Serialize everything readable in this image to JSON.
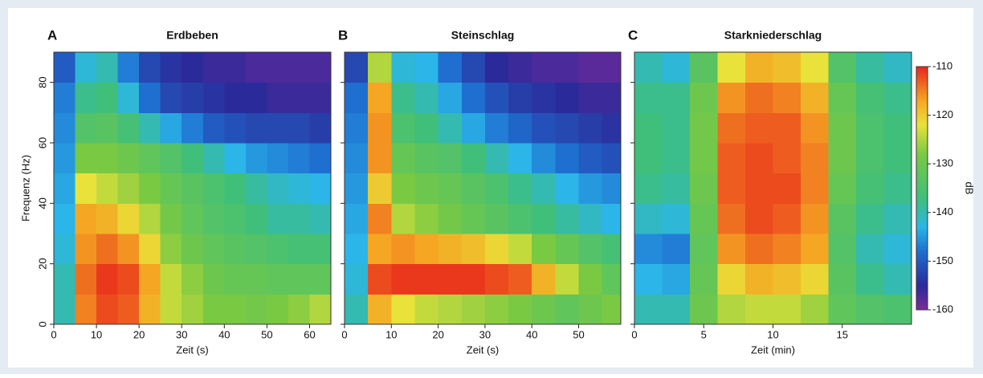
{
  "chart_data": [
    {
      "type": "heatmap",
      "letter": "A",
      "title": "Erdbeben",
      "xlabel": "Zeit (s)",
      "ylabel": "Frequenz (Hz)",
      "xlim": [
        0,
        65
      ],
      "xticks": [
        0,
        10,
        20,
        30,
        40,
        50,
        60
      ],
      "ylim": [
        0,
        90
      ],
      "yticks": [
        0,
        20,
        40,
        60,
        80
      ],
      "xbins": [
        0,
        5,
        10,
        15,
        20,
        25,
        30,
        35,
        40,
        45,
        50,
        55,
        60,
        65
      ],
      "ybins": [
        0,
        10,
        20,
        30,
        40,
        50,
        60,
        70,
        80,
        90
      ],
      "z": [
        [
          -140,
          -115,
          -112,
          -113,
          -118,
          -124,
          -126,
          -128,
          -128,
          -129,
          -128,
          -127,
          -125
        ],
        [
          -140,
          -114,
          -111,
          -112,
          -117,
          -124,
          -127,
          -130,
          -131,
          -131,
          -132,
          -132,
          -132
        ],
        [
          -142,
          -116,
          -114,
          -116,
          -121,
          -127,
          -130,
          -132,
          -133,
          -134,
          -135,
          -136,
          -136
        ],
        [
          -143,
          -117,
          -118,
          -121,
          -125,
          -129,
          -132,
          -134,
          -135,
          -137,
          -139,
          -139,
          -140
        ],
        [
          -144,
          -122,
          -124,
          -126,
          -128,
          -131,
          -133,
          -135,
          -137,
          -139,
          -141,
          -142,
          -143
        ],
        [
          -145,
          -128,
          -128,
          -130,
          -132,
          -134,
          -137,
          -140,
          -143,
          -145,
          -146,
          -147,
          -148
        ],
        [
          -146,
          -134,
          -133,
          -136,
          -140,
          -144,
          -147,
          -150,
          -151,
          -152,
          -152,
          -152,
          -153
        ],
        [
          -147,
          -138,
          -137,
          -142,
          -148,
          -152,
          -153,
          -154,
          -155,
          -155,
          -156,
          -156,
          -156
        ],
        [
          -150,
          -142,
          -140,
          -147,
          -152,
          -154,
          -155,
          -156,
          -156,
          -157,
          -157,
          -157,
          -157
        ]
      ]
    },
    {
      "type": "heatmap",
      "letter": "B",
      "title": "Steinschlag",
      "xlabel": "Zeit (s)",
      "xlim": [
        0,
        59
      ],
      "xticks": [
        0,
        10,
        20,
        30,
        40,
        50
      ],
      "ylim": [
        0,
        90
      ],
      "yticks": [
        0,
        20,
        40,
        60,
        80
      ],
      "xbins": [
        0,
        5,
        10,
        15,
        20,
        25,
        30,
        35,
        40,
        45,
        50,
        55,
        59
      ],
      "ybins": [
        0,
        10,
        20,
        30,
        40,
        50,
        60,
        70,
        80,
        90
      ],
      "z": [
        [
          -140,
          -118,
          -122,
          -124,
          -125,
          -126,
          -127,
          -128,
          -130,
          -132,
          -130,
          -128
        ],
        [
          -142,
          -112,
          -111,
          -111,
          -111,
          -111,
          -112,
          -113,
          -118,
          -124,
          -128,
          -132
        ],
        [
          -143,
          -117,
          -116,
          -117,
          -118,
          -119,
          -121,
          -124,
          -128,
          -131,
          -134,
          -136
        ],
        [
          -144,
          -115,
          -125,
          -127,
          -129,
          -131,
          -133,
          -135,
          -137,
          -139,
          -141,
          -143
        ],
        [
          -145,
          -120,
          -128,
          -130,
          -131,
          -133,
          -135,
          -138,
          -140,
          -143,
          -145,
          -146
        ],
        [
          -146,
          -116,
          -131,
          -133,
          -134,
          -137,
          -140,
          -143,
          -146,
          -148,
          -150,
          -151
        ],
        [
          -147,
          -116,
          -135,
          -137,
          -140,
          -144,
          -147,
          -149,
          -151,
          -152,
          -153,
          -154
        ],
        [
          -148,
          -117,
          -138,
          -140,
          -144,
          -148,
          -151,
          -153,
          -154,
          -155,
          -156,
          -156
        ],
        [
          -152,
          -125,
          -142,
          -143,
          -148,
          -152,
          -155,
          -156,
          -157,
          -157,
          -158,
          -158
        ]
      ]
    },
    {
      "type": "heatmap",
      "letter": "C",
      "title": "Starkniederschlag",
      "xlabel": "Zeit (min)",
      "xlim": [
        0,
        20
      ],
      "xticks": [
        0,
        5,
        10,
        15
      ],
      "ylim": [
        0,
        90
      ],
      "yticks": [
        0,
        20,
        40,
        60,
        80
      ],
      "xbins": [
        0,
        2,
        4,
        6,
        8,
        10,
        12,
        14,
        16,
        18,
        20
      ],
      "ybins": [
        0,
        10,
        20,
        30,
        40,
        50,
        60,
        70,
        80,
        90
      ],
      "z": [
        [
          -140,
          -140,
          -130,
          -125,
          -124,
          -124,
          -126,
          -132,
          -134,
          -135
        ],
        [
          -143,
          -144,
          -131,
          -121,
          -118,
          -119,
          -121,
          -133,
          -138,
          -140
        ],
        [
          -146,
          -147,
          -132,
          -116,
          -114,
          -115,
          -117,
          -134,
          -140,
          -142
        ],
        [
          -141,
          -142,
          -131,
          -114,
          -112,
          -113,
          -116,
          -133,
          -138,
          -140
        ],
        [
          -138,
          -139,
          -130,
          -113,
          -112,
          -112,
          -115,
          -131,
          -136,
          -138
        ],
        [
          -137,
          -138,
          -129,
          -113,
          -112,
          -113,
          -115,
          -130,
          -135,
          -137
        ],
        [
          -137,
          -138,
          -129,
          -114,
          -113,
          -113,
          -116,
          -130,
          -135,
          -137
        ],
        [
          -138,
          -138,
          -130,
          -116,
          -114,
          -115,
          -118,
          -131,
          -136,
          -138
        ],
        [
          -140,
          -142,
          -133,
          -122,
          -118,
          -119,
          -122,
          -134,
          -139,
          -141
        ]
      ],
      "colorbar": {
        "clim": [
          -160,
          -110
        ],
        "ticks": [
          -110,
          -120,
          -130,
          -140,
          -150,
          -160
        ],
        "label": "dB"
      }
    }
  ]
}
